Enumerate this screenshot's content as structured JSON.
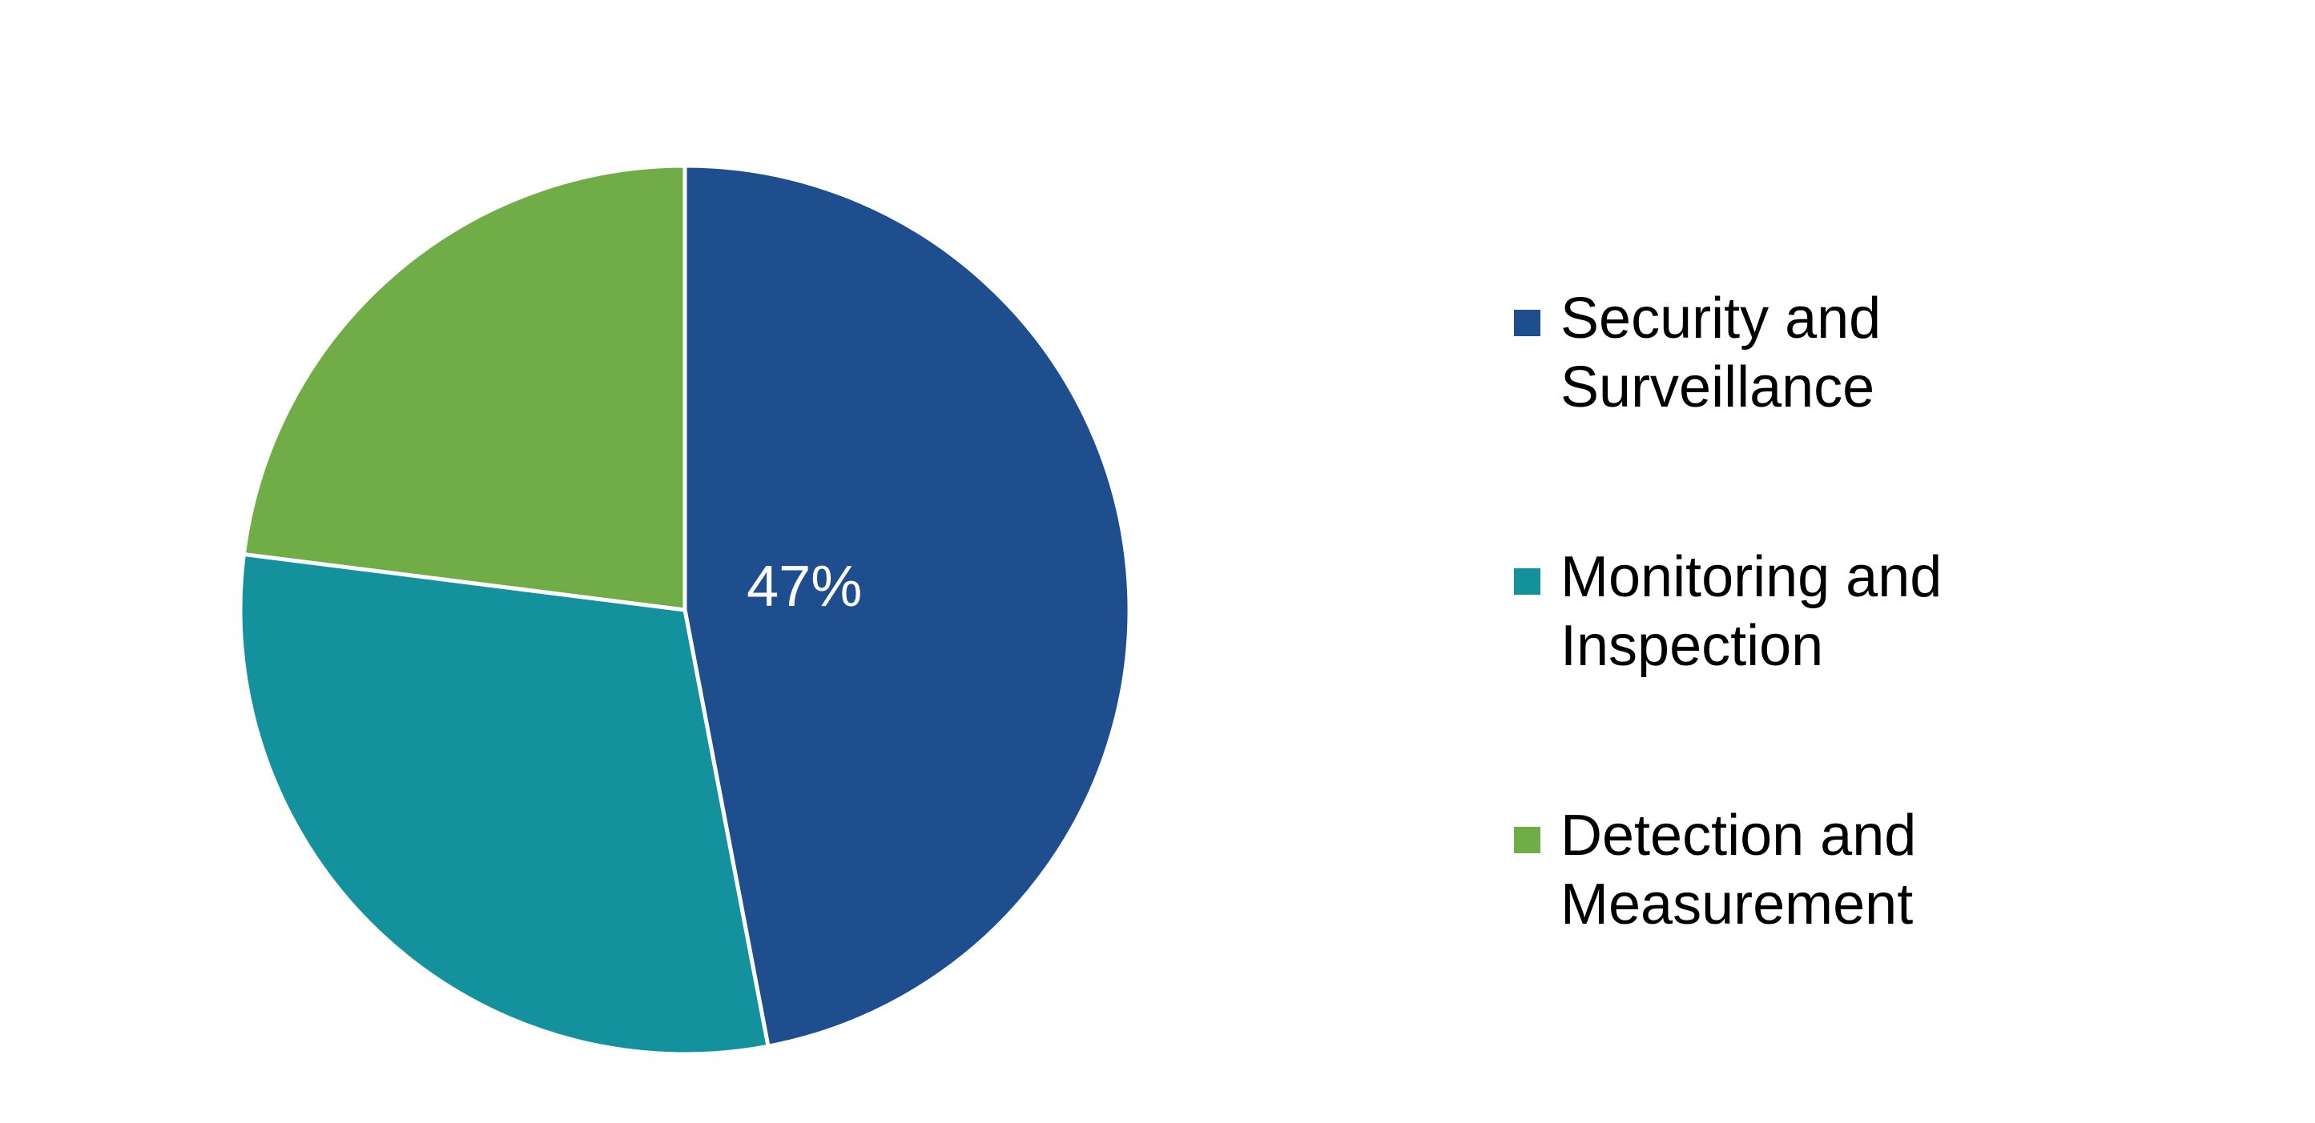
{
  "chart_data": {
    "type": "pie",
    "title": "",
    "categories": [
      "Security and Surveillance",
      "Monitoring and Inspection",
      "Detection and Measurement"
    ],
    "values": [
      47,
      30,
      23
    ],
    "unit": "%",
    "data_labels": [
      "47%",
      "",
      ""
    ],
    "colors": [
      "#1f4e8f",
      "#13929e",
      "#70ad47"
    ],
    "start_angle_deg": 0,
    "direction": "clockwise",
    "legend_placement": "right"
  },
  "legend": {
    "items": [
      {
        "label": "Security and Surveillance",
        "color": "#1f4e8f"
      },
      {
        "label": "Monitoring and Inspection",
        "color": "#13929e"
      },
      {
        "label": "Detection and Measurement",
        "color": "#70ad47"
      }
    ]
  }
}
